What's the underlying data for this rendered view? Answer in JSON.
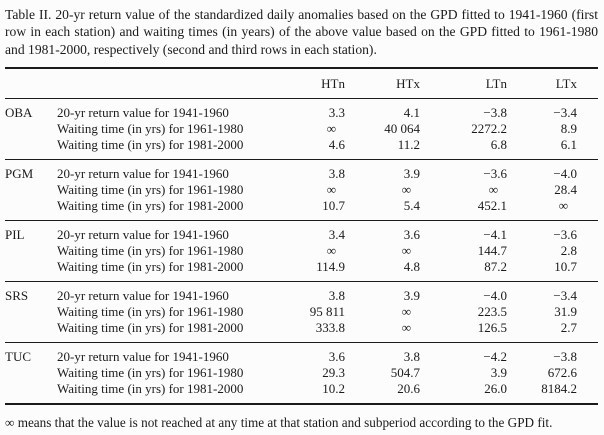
{
  "page": {
    "caption": "Table II. 20-yr return value of the standardized daily anomalies based on the GPD fitted to 1941-1960 (first row in each station) and waiting times (in years) of the above value based on the GPD fitted to 1961-1980 and 1981-2000, respectively (second and third rows in each station).",
    "footnote": "∞ means that the value is not reached at any time at that station and subperiod according to the GPD fit."
  },
  "table": {
    "columns": [
      "HTn",
      "HTx",
      "LTn",
      "LTx"
    ],
    "row_labels": {
      "return_value": "20-yr return value for 1941-1960",
      "waiting_1961": "Waiting time (in yrs) for 1961-1980",
      "waiting_1981": "Waiting time (in yrs) for 1981-2000"
    },
    "groups": [
      {
        "station": "OBA",
        "rows": [
          {
            "label": "20-yr return value for 1941-1960",
            "values": [
              "3.3",
              "4.1",
              "−3.8",
              "−3.4"
            ]
          },
          {
            "label": "Waiting time (in yrs) for 1961-1980",
            "values": [
              "∞",
              "40 064",
              "2272.2",
              "8.9"
            ]
          },
          {
            "label": "Waiting time (in yrs) for 1981-2000",
            "values": [
              "4.6",
              "11.2",
              "6.8",
              "6.1"
            ]
          }
        ]
      },
      {
        "station": "PGM",
        "rows": [
          {
            "label": "20-yr return value for 1941-1960",
            "values": [
              "3.8",
              "3.9",
              "−3.6",
              "−4.0"
            ]
          },
          {
            "label": "Waiting time (in yrs) for 1961-1980",
            "values": [
              "∞",
              "∞",
              "∞",
              "28.4"
            ]
          },
          {
            "label": "Waiting time (in yrs) for 1981-2000",
            "values": [
              "10.7",
              "5.4",
              "452.1",
              "∞"
            ]
          }
        ]
      },
      {
        "station": "PIL",
        "rows": [
          {
            "label": "20-yr return value for 1941-1960",
            "values": [
              "3.4",
              "3.6",
              "−4.1",
              "−3.6"
            ]
          },
          {
            "label": "Waiting time (in yrs) for 1961-1980",
            "values": [
              "∞",
              "∞",
              "144.7",
              "2.8"
            ]
          },
          {
            "label": "Waiting time (in yrs) for 1981-2000",
            "values": [
              "114.9",
              "4.8",
              "87.2",
              "10.7"
            ]
          }
        ]
      },
      {
        "station": "SRS",
        "rows": [
          {
            "label": "20-yr return value for 1941-1960",
            "values": [
              "3.8",
              "3.9",
              "−4.0",
              "−3.4"
            ]
          },
          {
            "label": "Waiting time (in yrs) for 1961-1980",
            "values": [
              "95 811",
              "∞",
              "223.5",
              "31.9"
            ]
          },
          {
            "label": "Waiting time (in yrs) for 1981-2000",
            "values": [
              "333.8",
              "∞",
              "126.5",
              "2.7"
            ]
          }
        ]
      },
      {
        "station": "TUC",
        "rows": [
          {
            "label": "20-yr return value for 1941-1960",
            "values": [
              "3.6",
              "3.8",
              "−4.2",
              "−3.8"
            ]
          },
          {
            "label": "Waiting time (in yrs) for 1961-1980",
            "values": [
              "29.3",
              "504.7",
              "3.9",
              "672.6"
            ]
          },
          {
            "label": "Waiting time (in yrs) for 1981-2000",
            "values": [
              "10.2",
              "20.6",
              "26.0",
              "8184.2"
            ]
          }
        ]
      }
    ]
  }
}
